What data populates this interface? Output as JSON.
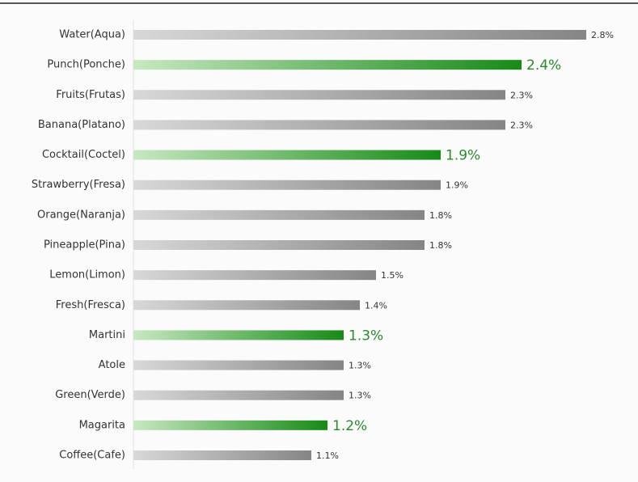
{
  "chart_data": {
    "type": "bar",
    "orientation": "horizontal",
    "categories": [
      "Water(Aqua)",
      "Punch(Ponche)",
      "Fruits(Frutas)",
      "Banana(Platano)",
      "Cocktail(Coctel)",
      "Strawberry(Fresa)",
      "Orange(Naranja)",
      "Pineapple(Pina)",
      "Lemon(Limon)",
      "Fresh(Fresca)",
      "Martini",
      "Atole",
      "Green(Verde)",
      "Magarita",
      "Coffee(Cafe)"
    ],
    "values": [
      2.8,
      2.4,
      2.3,
      2.3,
      1.9,
      1.9,
      1.8,
      1.8,
      1.5,
      1.4,
      1.3,
      1.3,
      1.3,
      1.2,
      1.1
    ],
    "value_labels": [
      "2.8%",
      "2.4%",
      "2.3%",
      "2.3%",
      "1.9%",
      "1.9%",
      "1.8%",
      "1.8%",
      "1.5%",
      "1.4%",
      "1.3%",
      "1.3%",
      "1.3%",
      "1.2%",
      "1.1%"
    ],
    "highlighted": [
      false,
      true,
      false,
      false,
      true,
      false,
      false,
      false,
      false,
      false,
      true,
      false,
      false,
      true,
      false
    ],
    "colors": {
      "normal": [
        "#d8d8d8",
        "#858585"
      ],
      "highlight": [
        "#c8e8c2",
        "#178a17"
      ],
      "highlight_label": "#2a8a2a"
    },
    "xlim": [
      0,
      2.8
    ]
  }
}
